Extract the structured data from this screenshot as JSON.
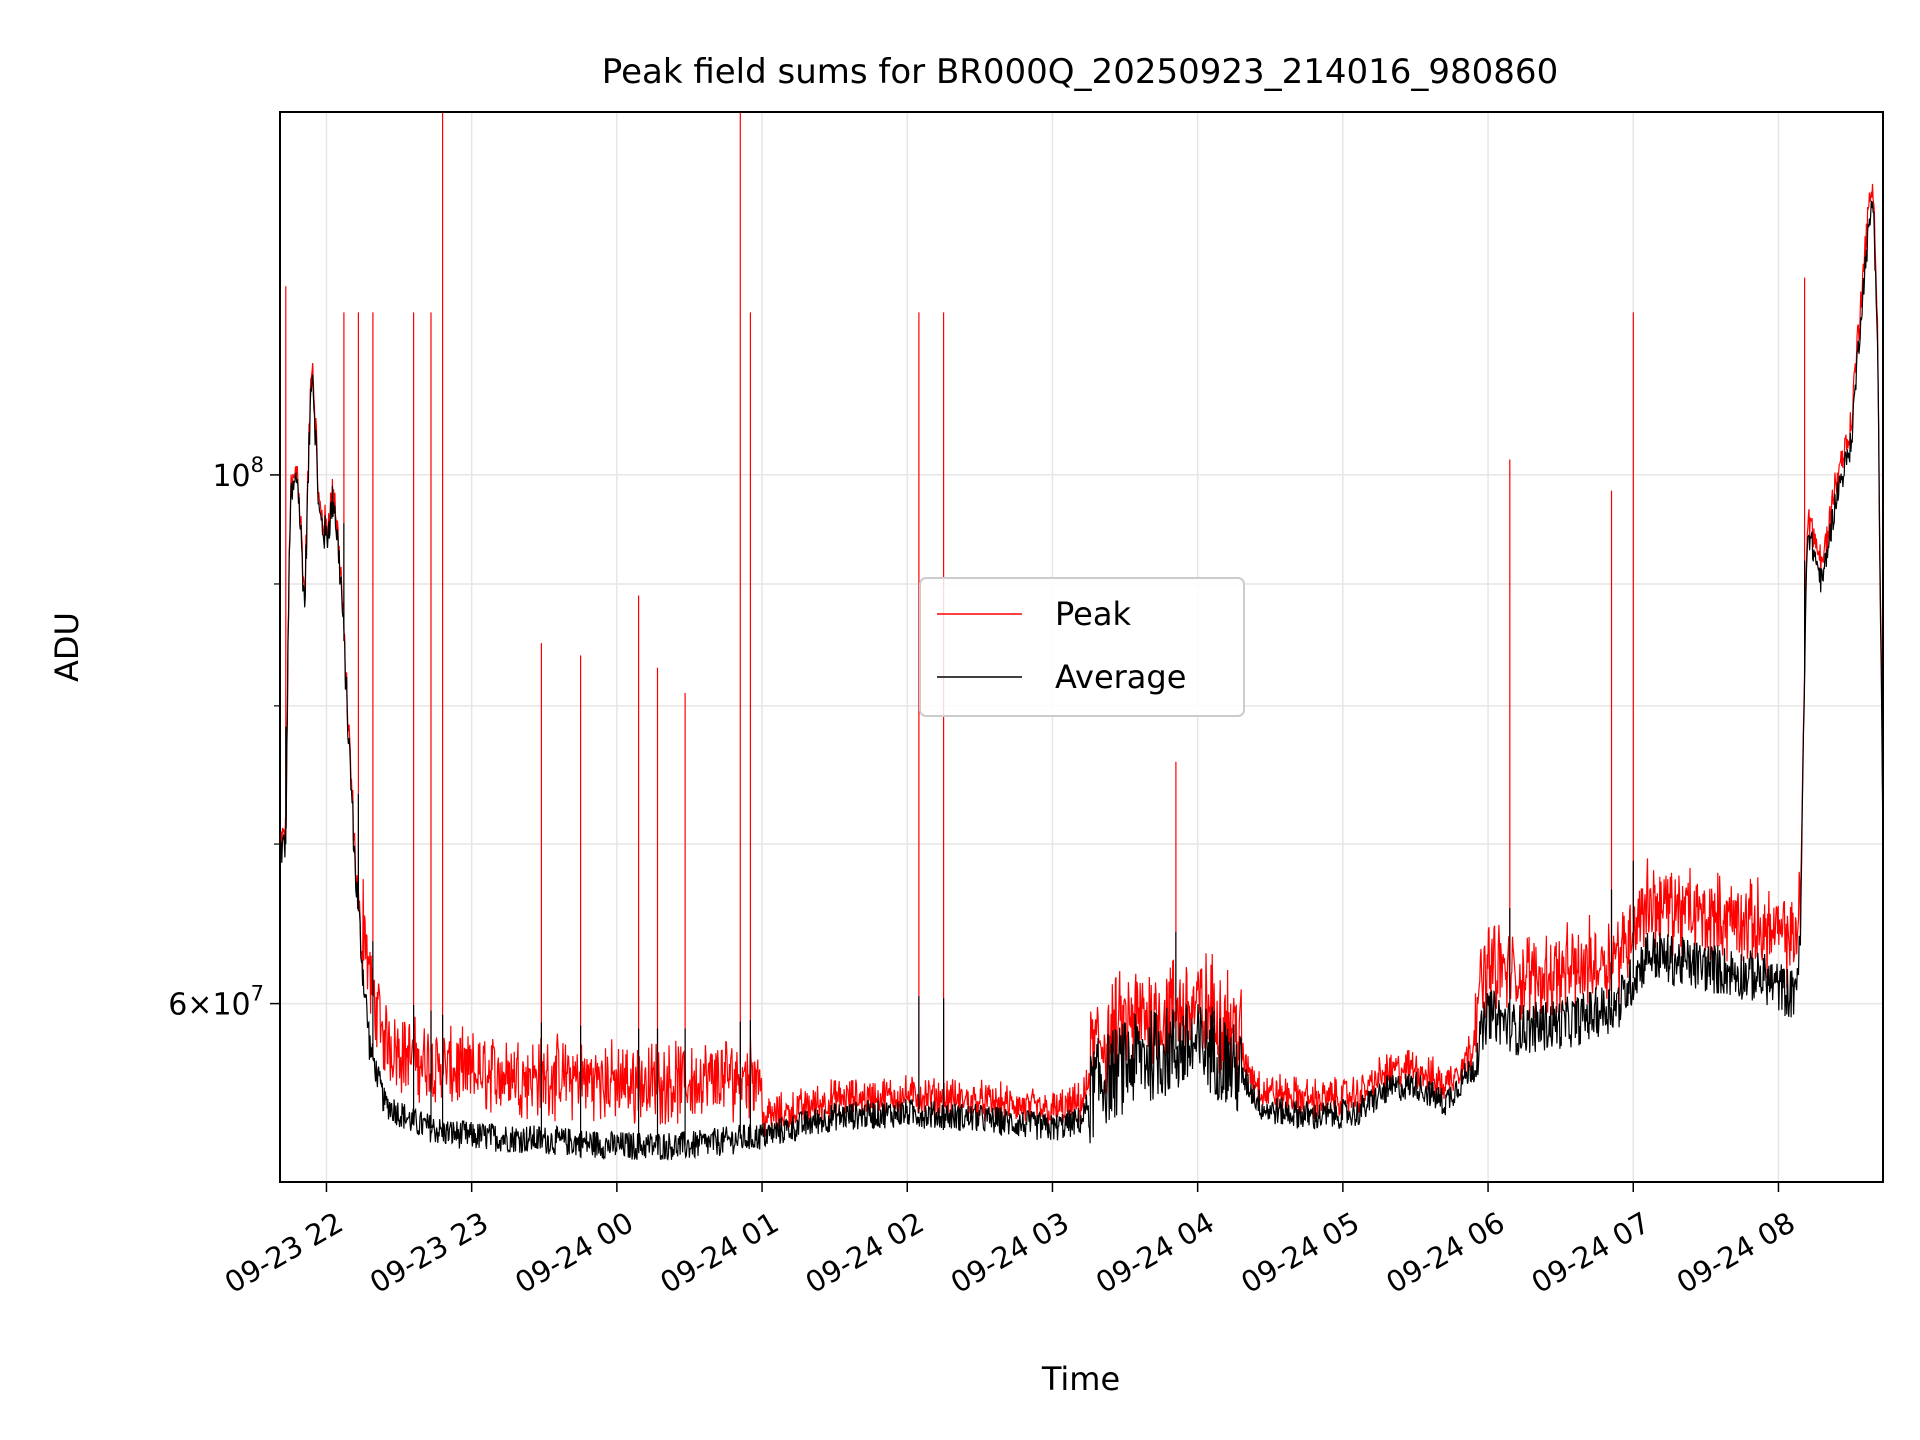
{
  "chart_data": {
    "type": "line",
    "title": "Peak field sums for BR000Q_20250923_214016_980860",
    "xlabel": "Time",
    "ylabel": "ADU",
    "y_scale": "log",
    "ylim": [
      50500000,
      142000000
    ],
    "xlim_hours": [
      -0.32,
      10.72
    ],
    "x_ticks": [
      {
        "label": "09-23 22",
        "hour": 0
      },
      {
        "label": "09-23 23",
        "hour": 1
      },
      {
        "label": "09-24 00",
        "hour": 2
      },
      {
        "label": "09-24 01",
        "hour": 3
      },
      {
        "label": "09-24 02",
        "hour": 4
      },
      {
        "label": "09-24 03",
        "hour": 5
      },
      {
        "label": "09-24 04",
        "hour": 6
      },
      {
        "label": "09-24 05",
        "hour": 7
      },
      {
        "label": "09-24 06",
        "hour": 8
      },
      {
        "label": "09-24 07",
        "hour": 9
      },
      {
        "label": "09-24 08",
        "hour": 10
      }
    ],
    "y_major_ticks": [
      {
        "value": 60000000,
        "mantissa": "6",
        "exponent": "7"
      },
      {
        "value": 100000000,
        "mantissa": "",
        "exponent": "8"
      }
    ],
    "y_minor_ticks": [
      70000000,
      80000000,
      90000000
    ],
    "grid": true,
    "legend_position": "center",
    "series": [
      {
        "name": "Peak",
        "color": "#ff0000"
      },
      {
        "name": "Average",
        "color": "#000000"
      }
    ],
    "average_trend": [
      [
        -0.32,
        69.5
      ],
      [
        -0.28,
        70
      ],
      [
        -0.25,
        97
      ],
      [
        -0.2,
        100
      ],
      [
        -0.15,
        88
      ],
      [
        -0.1,
        112
      ],
      [
        -0.05,
        96
      ],
      [
        0.0,
        94
      ],
      [
        0.05,
        98
      ],
      [
        0.1,
        90
      ],
      [
        0.15,
        78
      ],
      [
        0.2,
        68
      ],
      [
        0.25,
        62
      ],
      [
        0.3,
        57.5
      ],
      [
        0.4,
        54.5
      ],
      [
        0.6,
        53.5
      ],
      [
        0.8,
        53
      ],
      [
        1.0,
        52.8
      ],
      [
        1.5,
        52.6
      ],
      [
        2.0,
        52.3
      ],
      [
        2.5,
        52.3
      ],
      [
        3.0,
        52.8
      ],
      [
        3.5,
        53.8
      ],
      [
        4.0,
        54
      ],
      [
        4.5,
        53.7
      ],
      [
        5.0,
        53.2
      ],
      [
        5.2,
        53.6
      ],
      [
        5.3,
        55.5
      ],
      [
        5.6,
        57
      ],
      [
        5.9,
        57.5
      ],
      [
        6.1,
        57.5
      ],
      [
        6.3,
        56
      ],
      [
        6.45,
        54.2
      ],
      [
        6.8,
        53.8
      ],
      [
        7.1,
        54
      ],
      [
        7.3,
        55.2
      ],
      [
        7.5,
        55.5
      ],
      [
        7.7,
        54.5
      ],
      [
        7.9,
        56.5
      ],
      [
        8.0,
        59.5
      ],
      [
        8.2,
        58.5
      ],
      [
        8.6,
        59
      ],
      [
        8.9,
        60
      ],
      [
        9.1,
        63
      ],
      [
        9.3,
        62.5
      ],
      [
        9.6,
        62
      ],
      [
        9.9,
        61.5
      ],
      [
        10.1,
        60.5
      ],
      [
        10.15,
        63
      ],
      [
        10.2,
        95
      ],
      [
        10.3,
        90
      ],
      [
        10.4,
        98
      ],
      [
        10.5,
        103
      ],
      [
        10.6,
        123
      ],
      [
        10.65,
        131
      ],
      [
        10.68,
        116
      ],
      [
        10.7,
        90
      ],
      [
        10.72,
        70
      ]
    ],
    "peak_spikes": [
      [
        -0.28,
        120
      ],
      [
        0.12,
        117
      ],
      [
        0.22,
        117
      ],
      [
        0.32,
        117
      ],
      [
        0.6,
        117
      ],
      [
        0.72,
        117
      ],
      [
        0.8,
        142
      ],
      [
        1.48,
        85
      ],
      [
        1.75,
        84
      ],
      [
        2.15,
        89
      ],
      [
        2.28,
        83
      ],
      [
        2.47,
        81
      ],
      [
        2.85,
        142
      ],
      [
        2.92,
        117
      ],
      [
        4.08,
        117
      ],
      [
        4.25,
        117
      ],
      [
        5.85,
        75.8
      ],
      [
        8.15,
        101.5
      ],
      [
        8.85,
        98.5
      ],
      [
        9.0,
        117
      ],
      [
        10.18,
        121
      ]
    ]
  }
}
